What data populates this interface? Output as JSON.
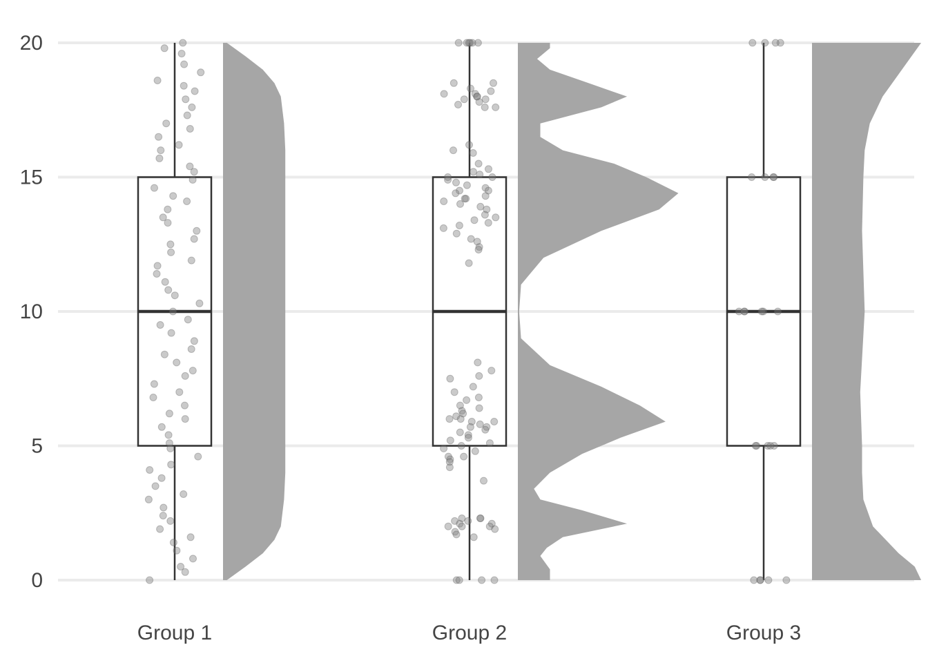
{
  "chart_data": {
    "type": "raincloud",
    "title": "",
    "xlabel": "",
    "ylabel": "",
    "ylim": [
      0,
      20
    ],
    "y_ticks": [
      0,
      5,
      10,
      15,
      20
    ],
    "y_tick_labels": [
      "0",
      "5",
      "10",
      "15",
      "20"
    ],
    "grid": "horizontal major lines",
    "legend": "none",
    "categories": [
      "Group 1",
      "Group 2",
      "Group 3"
    ],
    "colors": {
      "grid": "#ebebeb",
      "box_stroke": "#333333",
      "point_fill": "#7a7a7a",
      "density_fill": "#a6a6a6",
      "text": "#444444"
    },
    "boxplots": [
      {
        "group": "Group 1",
        "min": 0,
        "q1": 5,
        "median": 10,
        "q3": 15,
        "max": 20
      },
      {
        "group": "Group 2",
        "min": 0,
        "q1": 5,
        "median": 10,
        "q3": 15,
        "max": 20
      },
      {
        "group": "Group 3",
        "min": 0,
        "q1": 5,
        "median": 10,
        "q3": 15,
        "max": 20
      }
    ],
    "density": [
      {
        "group": "Group 1",
        "points": [
          [
            0,
            0.06
          ],
          [
            0.5,
            0.35
          ],
          [
            1,
            0.62
          ],
          [
            1.5,
            0.8
          ],
          [
            2,
            0.9
          ],
          [
            3,
            0.95
          ],
          [
            4,
            0.97
          ],
          [
            10,
            0.97
          ],
          [
            16,
            0.97
          ],
          [
            17,
            0.95
          ],
          [
            18,
            0.9
          ],
          [
            18.5,
            0.8
          ],
          [
            19,
            0.62
          ],
          [
            19.5,
            0.35
          ],
          [
            20,
            0.06
          ]
        ]
      },
      {
        "group": "Group 2",
        "points": [
          [
            0,
            0.5
          ],
          [
            0.4,
            0.5
          ],
          [
            0.9,
            0.35
          ],
          [
            1.2,
            0.45
          ],
          [
            1.6,
            0.7
          ],
          [
            2.1,
            1.7
          ],
          [
            2.6,
            1.0
          ],
          [
            3,
            0.35
          ],
          [
            3.4,
            0.25
          ],
          [
            4,
            0.5
          ],
          [
            4.7,
            1.0
          ],
          [
            5.3,
            1.6
          ],
          [
            5.9,
            2.3
          ],
          [
            6.5,
            1.9
          ],
          [
            7.2,
            1.3
          ],
          [
            8,
            0.5
          ],
          [
            9,
            0.05
          ],
          [
            10,
            0.02
          ],
          [
            11,
            0.05
          ],
          [
            12,
            0.4
          ],
          [
            13,
            1.3
          ],
          [
            13.8,
            2.2
          ],
          [
            14.4,
            2.5
          ],
          [
            15,
            2.0
          ],
          [
            15.5,
            1.5
          ],
          [
            16,
            0.7
          ],
          [
            16.5,
            0.35
          ],
          [
            17,
            0.35
          ],
          [
            17.6,
            1.3
          ],
          [
            18,
            1.7
          ],
          [
            18.5,
            1.1
          ],
          [
            19,
            0.5
          ],
          [
            19.4,
            0.3
          ],
          [
            19.8,
            0.5
          ],
          [
            20,
            0.5
          ]
        ]
      },
      {
        "group": "Group 3",
        "points": [
          [
            0,
            1.7
          ],
          [
            0.5,
            1.6
          ],
          [
            1,
            1.35
          ],
          [
            2,
            0.95
          ],
          [
            3,
            0.8
          ],
          [
            4,
            0.78
          ],
          [
            5,
            0.78
          ],
          [
            7,
            0.75
          ],
          [
            10,
            0.82
          ],
          [
            13,
            0.78
          ],
          [
            15,
            0.8
          ],
          [
            16,
            0.82
          ],
          [
            17,
            0.9
          ],
          [
            18,
            1.1
          ],
          [
            19,
            1.4
          ],
          [
            20,
            1.7
          ]
        ]
      }
    ],
    "jitter_points": [
      {
        "group": "Group 1",
        "values": [
          20,
          19.8,
          19.6,
          18.9,
          19.2,
          18.4,
          18.6,
          18.2,
          17.9,
          17.6,
          17.3,
          17.0,
          16.8,
          16.5,
          16.2,
          16.0,
          15.7,
          15.4,
          15.2,
          14.9,
          14.6,
          14.3,
          14.1,
          13.8,
          13.5,
          13.3,
          13.0,
          12.7,
          12.5,
          12.2,
          11.9,
          11.7,
          11.4,
          11.1,
          10.8,
          10.6,
          10.3,
          10.0,
          9.7,
          9.5,
          9.2,
          8.9,
          8.6,
          8.4,
          8.1,
          7.8,
          7.6,
          7.3,
          7.0,
          6.8,
          6.5,
          6.2,
          6.0,
          5.7,
          5.4,
          5.1,
          4.9,
          4.6,
          4.3,
          4.1,
          3.8,
          3.5,
          3.2,
          3.0,
          2.7,
          2.4,
          2.2,
          1.9,
          1.6,
          1.4,
          1.1,
          0.8,
          0.5,
          0.3,
          0.0
        ]
      },
      {
        "group": "Group 2",
        "values": [
          20,
          20,
          20,
          20,
          20,
          20,
          18.5,
          18.5,
          18.3,
          18.2,
          18.1,
          18.1,
          18.0,
          18.0,
          17.9,
          17.9,
          17.8,
          17.7,
          17.6,
          17.6,
          16.2,
          16.0,
          15.9,
          15.5,
          15.3,
          15.2,
          15.1,
          15.0,
          15.0,
          14.9,
          14.8,
          14.7,
          14.6,
          14.5,
          14.5,
          14.4,
          14.3,
          14.2,
          14.2,
          14.1,
          14.0,
          13.9,
          13.8,
          13.6,
          13.5,
          13.4,
          13.3,
          13.2,
          13.1,
          12.9,
          12.7,
          12.6,
          12.4,
          12.3,
          11.8,
          8.1,
          7.8,
          7.6,
          7.5,
          7.2,
          7.0,
          6.8,
          6.7,
          6.5,
          6.4,
          6.3,
          6.2,
          6.1,
          6.0,
          6.0,
          5.9,
          5.9,
          5.8,
          5.7,
          5.7,
          5.6,
          5.5,
          5.4,
          5.3,
          5.2,
          5.1,
          5.0,
          4.9,
          4.8,
          4.6,
          4.6,
          4.5,
          4.4,
          4.2,
          3.7,
          2.3,
          2.3,
          2.3,
          2.2,
          2.2,
          2.1,
          2.1,
          2.0,
          2.0,
          2.0,
          1.9,
          1.8,
          1.7,
          1.6,
          0,
          0,
          0,
          0
        ]
      },
      {
        "group": "Group 3",
        "values": [
          20,
          20,
          20,
          20,
          15,
          15,
          15,
          15,
          10,
          10,
          10,
          10,
          10,
          10,
          5,
          5,
          5,
          5,
          5,
          0,
          0,
          0,
          0,
          0
        ]
      }
    ]
  }
}
